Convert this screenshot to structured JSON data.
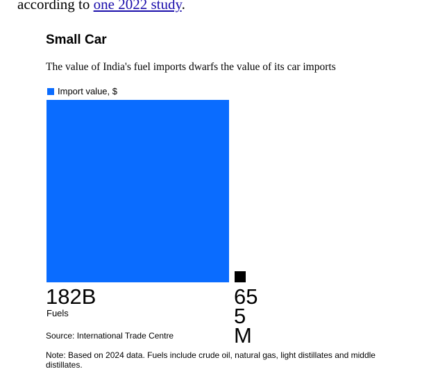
{
  "article": {
    "text_before": "according to ",
    "link": "one 2022 study",
    "text_after": "."
  },
  "chart_data": {
    "type": "square",
    "title": "Small Car",
    "subtitle": "The value of India's fuel imports dwarfs the value of its car imports",
    "categories": [
      "Fuels",
      null
    ],
    "series": [
      {
        "name": "Import value, $",
        "color": "#0a6cff",
        "values": [
          182000000000,
          655000000
        ],
        "value_labels": [
          "182B",
          "655M"
        ]
      }
    ],
    "colors": [
      "#0a6cff",
      "#000000"
    ],
    "source": "Source: International Trade Centre",
    "note": "Note: Based on 2024 data. Fuels include crude oil, natural gas, light distillates and middle distillates."
  }
}
